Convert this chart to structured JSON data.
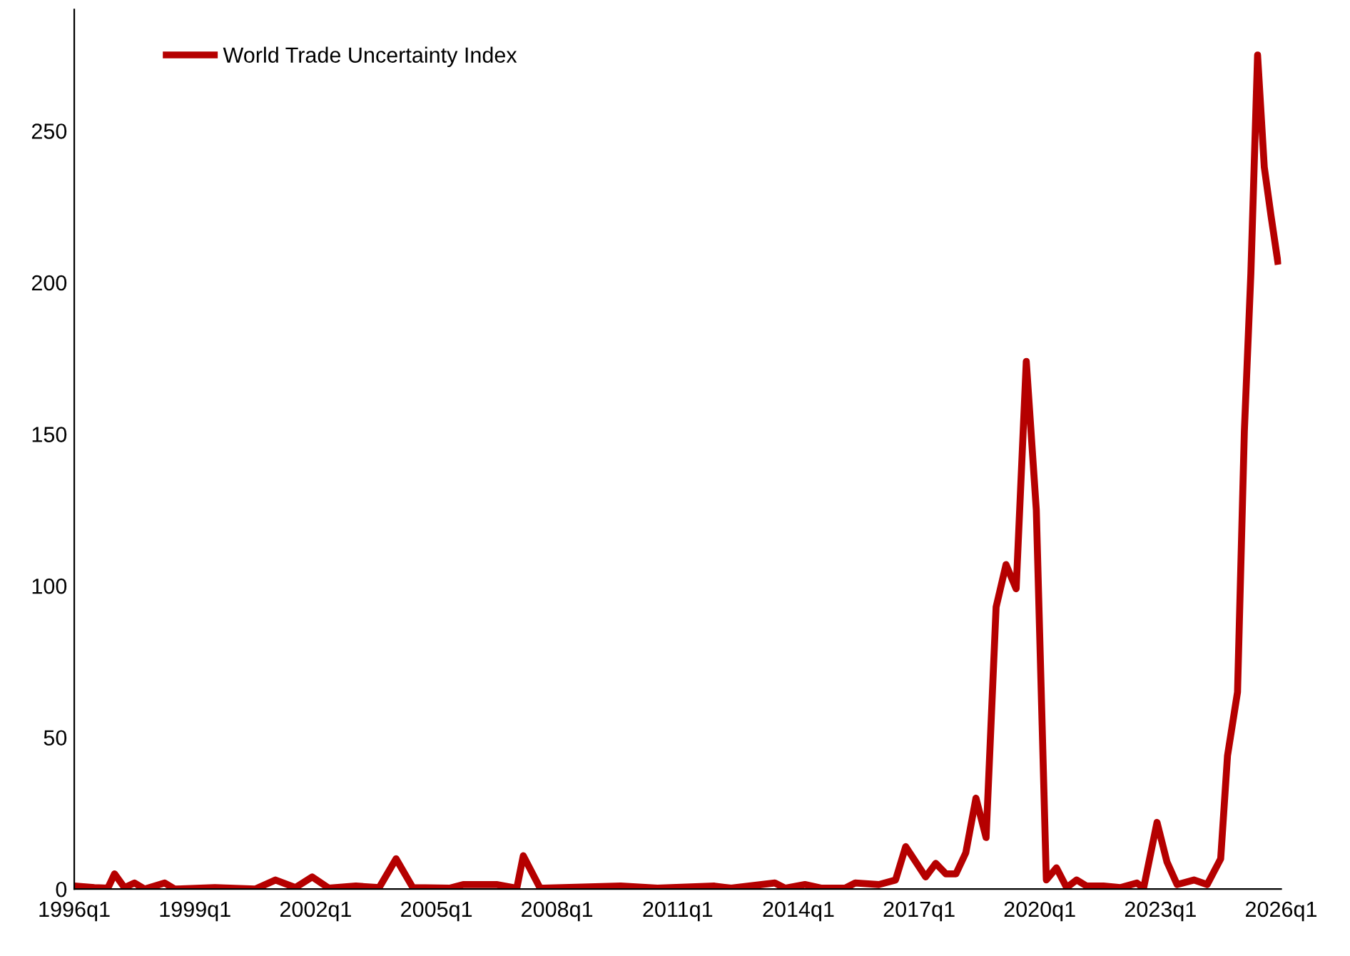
{
  "chart_data": {
    "type": "line",
    "x": [
      "1996-01",
      "1996-07",
      "1996-11",
      "1997-01",
      "1997-04",
      "1997-07",
      "1997-10",
      "1998-04",
      "1998-07",
      "1999-07",
      "2000-07",
      "2001-01",
      "2001-07",
      "2001-12",
      "2002-05",
      "2003-01",
      "2003-08",
      "2004-01",
      "2004-06",
      "2005-05",
      "2005-09",
      "2006-07",
      "2007-01",
      "2007-03",
      "2007-08",
      "2009-08",
      "2010-07",
      "2011-12",
      "2012-05",
      "2013-06",
      "2013-09",
      "2014-03",
      "2014-08",
      "2015-03",
      "2015-06",
      "2016-01",
      "2016-06",
      "2016-09",
      "2017-03",
      "2017-06",
      "2017-09",
      "2017-12",
      "2018-03",
      "2018-06",
      "2018-09",
      "2018-12",
      "2019-03",
      "2019-06",
      "2019-09",
      "2019-12",
      "2020-03",
      "2020-06",
      "2020-09",
      "2020-12",
      "2021-03",
      "2021-08",
      "2022-01",
      "2022-06",
      "2022-08",
      "2022-12",
      "2023-03",
      "2023-06",
      "2023-11",
      "2024-03",
      "2024-07",
      "2024-09",
      "2024-12",
      "2025-02",
      "2025-04",
      "2025-06",
      "2025-08",
      "2025-10",
      "2025-12"
    ],
    "series": [
      {
        "name": "World Trade Uncertainty Index",
        "color": "#b50000",
        "values": [
          1,
          0.5,
          0.3,
          5,
          0.5,
          2,
          0,
          2,
          0,
          0.5,
          0,
          3,
          0.5,
          4,
          0.3,
          1,
          0.5,
          10,
          0.5,
          0.3,
          1.5,
          1.5,
          0.3,
          11,
          0.3,
          1,
          0.3,
          1,
          0.3,
          2,
          0.3,
          1.5,
          0.3,
          0.3,
          2,
          1.5,
          3,
          14,
          4,
          8.5,
          5,
          5,
          12,
          30,
          17,
          93,
          107,
          99,
          174,
          125,
          3,
          7,
          0.5,
          3,
          1,
          1,
          0.5,
          2,
          0.3,
          22,
          9,
          1.5,
          3,
          1.5,
          10,
          44,
          65,
          151,
          203,
          275,
          238,
          222,
          207
        ]
      }
    ],
    "xlim": [
      "1996-01",
      "2026-01"
    ],
    "xticks": [
      {
        "value": "1996-01",
        "label": "1996q1"
      },
      {
        "value": "1999-01",
        "label": "1999q1"
      },
      {
        "value": "2002-01",
        "label": "2002q1"
      },
      {
        "value": "2005-01",
        "label": "2005q1"
      },
      {
        "value": "2008-01",
        "label": "2008q1"
      },
      {
        "value": "2011-01",
        "label": "2011q1"
      },
      {
        "value": "2014-01",
        "label": "2014q1"
      },
      {
        "value": "2017-01",
        "label": "2017q1"
      },
      {
        "value": "2020-01",
        "label": "2020q1"
      },
      {
        "value": "2023-01",
        "label": "2023q1"
      },
      {
        "value": "2026-01",
        "label": "2026q1"
      }
    ],
    "ylim": [
      0,
      290
    ],
    "yticks": [
      0,
      50,
      100,
      150,
      200,
      250
    ],
    "grid": false,
    "legend": "top left",
    "marker": "none",
    "line_style": "solid"
  }
}
